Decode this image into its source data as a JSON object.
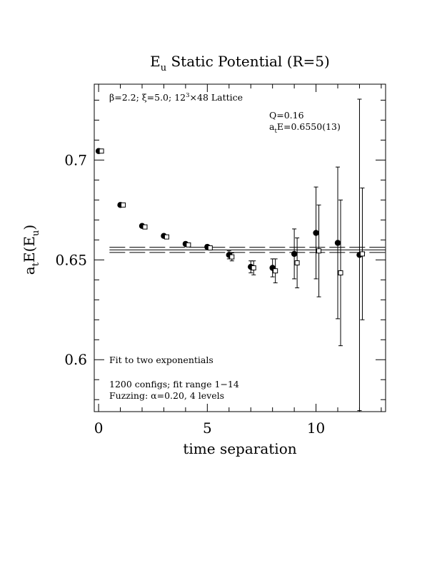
{
  "chart_data": {
    "type": "scatter",
    "title": "E",
    "title_sub": "u",
    "title_rest": " Static Potential (R=5)",
    "xlabel": "time separation",
    "ylabel": {
      "a": "a",
      "a_sub": "t",
      "mid": "E(E",
      "mid_sub": "u",
      "end": ")"
    },
    "xlim": [
      -0.2,
      13.2
    ],
    "ylim": [
      0.574,
      0.738
    ],
    "x_ticks": [
      0,
      5,
      10
    ],
    "x_tick_labels": [
      "0",
      "5",
      "10"
    ],
    "y_ticks": [
      0.6,
      0.65,
      0.7
    ],
    "y_tick_labels": [
      "0.6",
      "0.65",
      "0.7"
    ],
    "annotations": {
      "lattice": {
        "beta": "β=2.2; ",
        "xi": "ξ=5.0; ",
        "lat": "12",
        "lat_sup": "3",
        "lat_end": "×48 Lattice"
      },
      "q": "Q=0.16",
      "energy": {
        "a": "a",
        "sub": "t",
        "rest": "E=0.6550(13)"
      },
      "fit": "Fit to two exponentials",
      "configs": "1200 configs; fit range 1−14",
      "fuzzing": {
        "pre": "Fuzzing: ",
        "alpha": "α",
        "post": "=0.20, 4 levels"
      }
    },
    "fit": {
      "value": 0.655,
      "error": 0.0013,
      "x_from": 0.5,
      "x_to": 13.2
    },
    "series": [
      {
        "marker": "filled-circle",
        "points": [
          {
            "x": 0,
            "y": 0.7045,
            "err": 0.0005
          },
          {
            "x": 1,
            "y": 0.6775,
            "err": 0.0005
          },
          {
            "x": 2,
            "y": 0.667,
            "err": 0.0006
          },
          {
            "x": 3,
            "y": 0.662,
            "err": 0.0007
          },
          {
            "x": 4,
            "y": 0.658,
            "err": 0.0008
          },
          {
            "x": 5,
            "y": 0.6565,
            "err": 0.001
          },
          {
            "x": 6,
            "y": 0.6525,
            "err": 0.002
          },
          {
            "x": 7,
            "y": 0.6465,
            "err": 0.003
          },
          {
            "x": 8,
            "y": 0.646,
            "err": 0.0045
          },
          {
            "x": 9,
            "y": 0.653,
            "err": 0.0125
          },
          {
            "x": 10,
            "y": 0.6635,
            "err": 0.023
          },
          {
            "x": 11,
            "y": 0.6585,
            "err": 0.038
          },
          {
            "x": 12,
            "y": 0.6525,
            "err": 0.078
          }
        ]
      },
      {
        "marker": "open-square",
        "points": [
          {
            "x": 0,
            "y": 0.7045,
            "err": 0.0005
          },
          {
            "x": 1,
            "y": 0.6775,
            "err": 0.0005
          },
          {
            "x": 2,
            "y": 0.6665,
            "err": 0.0006
          },
          {
            "x": 3,
            "y": 0.6615,
            "err": 0.0007
          },
          {
            "x": 4,
            "y": 0.6575,
            "err": 0.0008
          },
          {
            "x": 5,
            "y": 0.656,
            "err": 0.001
          },
          {
            "x": 6,
            "y": 0.6515,
            "err": 0.002
          },
          {
            "x": 7,
            "y": 0.646,
            "err": 0.0035
          },
          {
            "x": 8,
            "y": 0.6445,
            "err": 0.006
          },
          {
            "x": 9,
            "y": 0.6485,
            "err": 0.0125
          },
          {
            "x": 10,
            "y": 0.6545,
            "err": 0.023
          },
          {
            "x": 11,
            "y": 0.6435,
            "err": 0.0365
          },
          {
            "x": 12,
            "y": 0.653,
            "err": 0.033
          }
        ]
      }
    ]
  }
}
